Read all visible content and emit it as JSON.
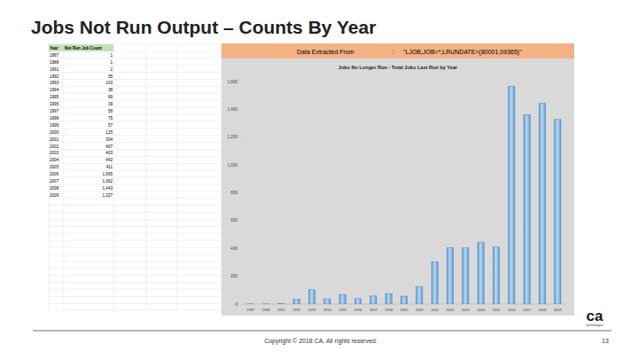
{
  "slide": {
    "title": "Jobs Not Run Output – Counts By Year",
    "footer": "Copyright © 2018 CA. All rights reserved.",
    "page": "13",
    "logo": "ca",
    "logo_sub": "technologies"
  },
  "extract": {
    "label": "Data Extracted From",
    "separator": ":",
    "value": "\"LJOB,JOB=*,LRUNDATE=(80001,09365)\""
  },
  "table": {
    "header": [
      "Year",
      "Not Run Job Count"
    ],
    "rows": [
      [
        "1987",
        "1"
      ],
      [
        "1988",
        "1"
      ],
      [
        "1991",
        "2"
      ],
      [
        "1992",
        "35"
      ],
      [
        "1993",
        "103"
      ],
      [
        "1994",
        "38"
      ],
      [
        "1995",
        "69"
      ],
      [
        "1996",
        "39"
      ],
      [
        "1997",
        "58"
      ],
      [
        "1998",
        "75"
      ],
      [
        "1999",
        "57"
      ],
      [
        "2000",
        "125"
      ],
      [
        "2001",
        "304"
      ],
      [
        "2002",
        "407"
      ],
      [
        "2003",
        "403"
      ],
      [
        "2004",
        "442"
      ],
      [
        "2005",
        "411"
      ],
      [
        "2006",
        "1,565"
      ],
      [
        "2007",
        "1,362"
      ],
      [
        "2008",
        "1,443"
      ],
      [
        "2009",
        "1,327"
      ]
    ]
  },
  "chart_data": {
    "type": "bar",
    "title": "Jobs No Longer Run - Total Jobs Last Run by Year",
    "categories": [
      "1987",
      "1988",
      "1991",
      "1992",
      "1993",
      "1994",
      "1995",
      "1996",
      "1997",
      "1998",
      "1999",
      "2000",
      "2001",
      "2002",
      "2003",
      "2004",
      "2005",
      "2006",
      "2007",
      "2008",
      "2009"
    ],
    "values": [
      1,
      1,
      2,
      35,
      103,
      38,
      69,
      39,
      58,
      75,
      57,
      125,
      304,
      407,
      403,
      442,
      411,
      1565,
      1362,
      1443,
      1327
    ],
    "color": "#5b9bd5",
    "ylim": [
      0,
      1600
    ],
    "yticks": [
      0,
      200,
      400,
      600,
      800,
      {
        "value": 1000,
        "label": "1,000"
      },
      {
        "value": 1200,
        "label": "1,200"
      },
      {
        "value": 1400,
        "label": "1,400"
      },
      {
        "value": 1600,
        "label": "1,600"
      }
    ],
    "grid": false
  }
}
